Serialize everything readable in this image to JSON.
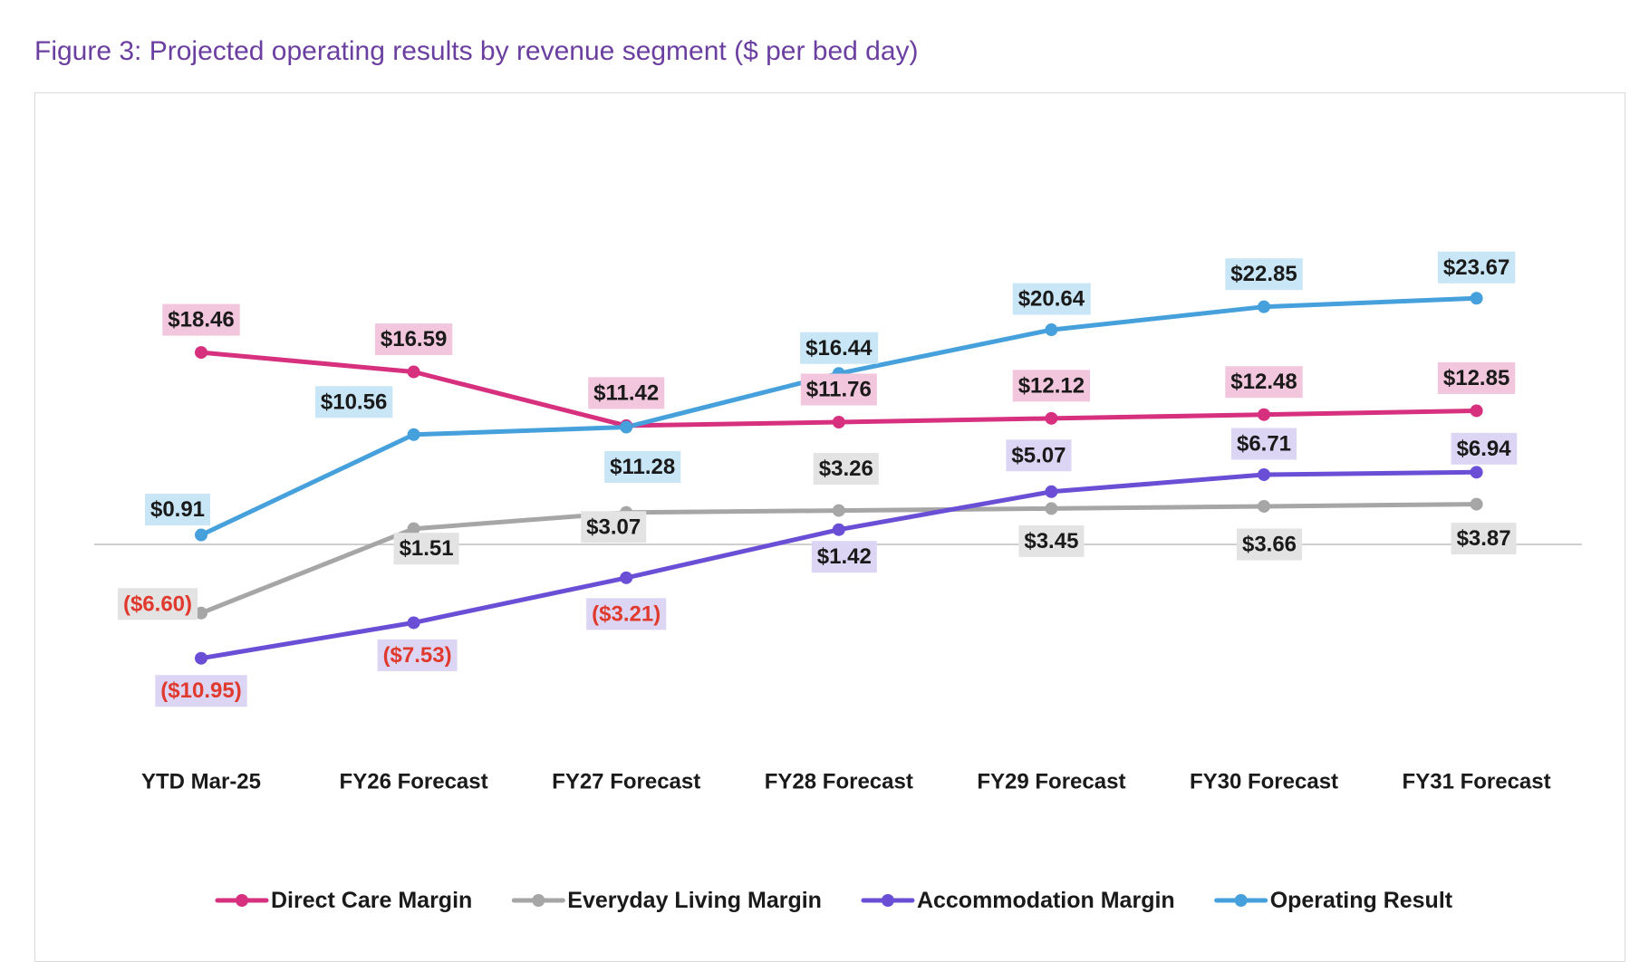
{
  "figure": {
    "title": "Figure 3: Projected operating results by revenue segment ($ per bed day)"
  },
  "colors": {
    "direct_care": "#d6307f",
    "everyday_living": "#a6a6a6",
    "accommodation": "#6a4fd6",
    "operating_result": "#45a0dc",
    "direct_care_label_bg": "#f2c6dc",
    "everyday_living_label_bg": "#e3e3e3",
    "accommodation_label_bg": "#dcd6f4",
    "operating_result_label_bg": "#c9e6f6",
    "negative_text": "#e03a2e",
    "positive_text": "#1a1a1a",
    "zero_line": "#cfcfcf"
  },
  "chart_data": {
    "type": "line",
    "title": "Figure 3: Projected operating results by revenue segment ($ per bed day)",
    "xlabel": "",
    "ylabel": "",
    "ylim": [
      -13,
      27
    ],
    "grid": false,
    "legend_position": "bottom",
    "categories": [
      "YTD Mar-25",
      "FY26 Forecast",
      "FY27 Forecast",
      "FY28 Forecast",
      "FY29 Forecast",
      "FY30 Forecast",
      "FY31 Forecast"
    ],
    "series": [
      {
        "key": "direct_care",
        "name": "Direct Care Margin",
        "values": [
          18.46,
          16.59,
          11.42,
          11.76,
          12.12,
          12.48,
          12.85
        ],
        "labels": [
          "$18.46",
          "$16.59",
          "$11.42",
          "$11.76",
          "$12.12",
          "$12.48",
          "$12.85"
        ]
      },
      {
        "key": "everyday_living",
        "name": "Everyday Living Margin",
        "values": [
          -6.6,
          1.51,
          3.07,
          3.26,
          3.45,
          3.66,
          3.87
        ],
        "labels": [
          "($6.60)",
          "$1.51",
          "$3.07",
          "$3.26",
          "$3.45",
          "$3.66",
          "$3.87"
        ]
      },
      {
        "key": "accommodation",
        "name": "Accommodation Margin",
        "values": [
          -10.95,
          -7.53,
          -3.21,
          1.42,
          5.07,
          6.71,
          6.94
        ],
        "labels": [
          "($10.95)",
          "($7.53)",
          "($3.21)",
          "$1.42",
          "$5.07",
          "$6.71",
          "$6.94"
        ]
      },
      {
        "key": "operating_result",
        "name": "Operating Result",
        "values": [
          0.91,
          10.56,
          11.28,
          16.44,
          20.64,
          22.85,
          23.67
        ],
        "labels": [
          "$0.91",
          "$10.56",
          "$11.28",
          "$16.44",
          "$20.64",
          "$22.85",
          "$23.67"
        ]
      }
    ]
  }
}
